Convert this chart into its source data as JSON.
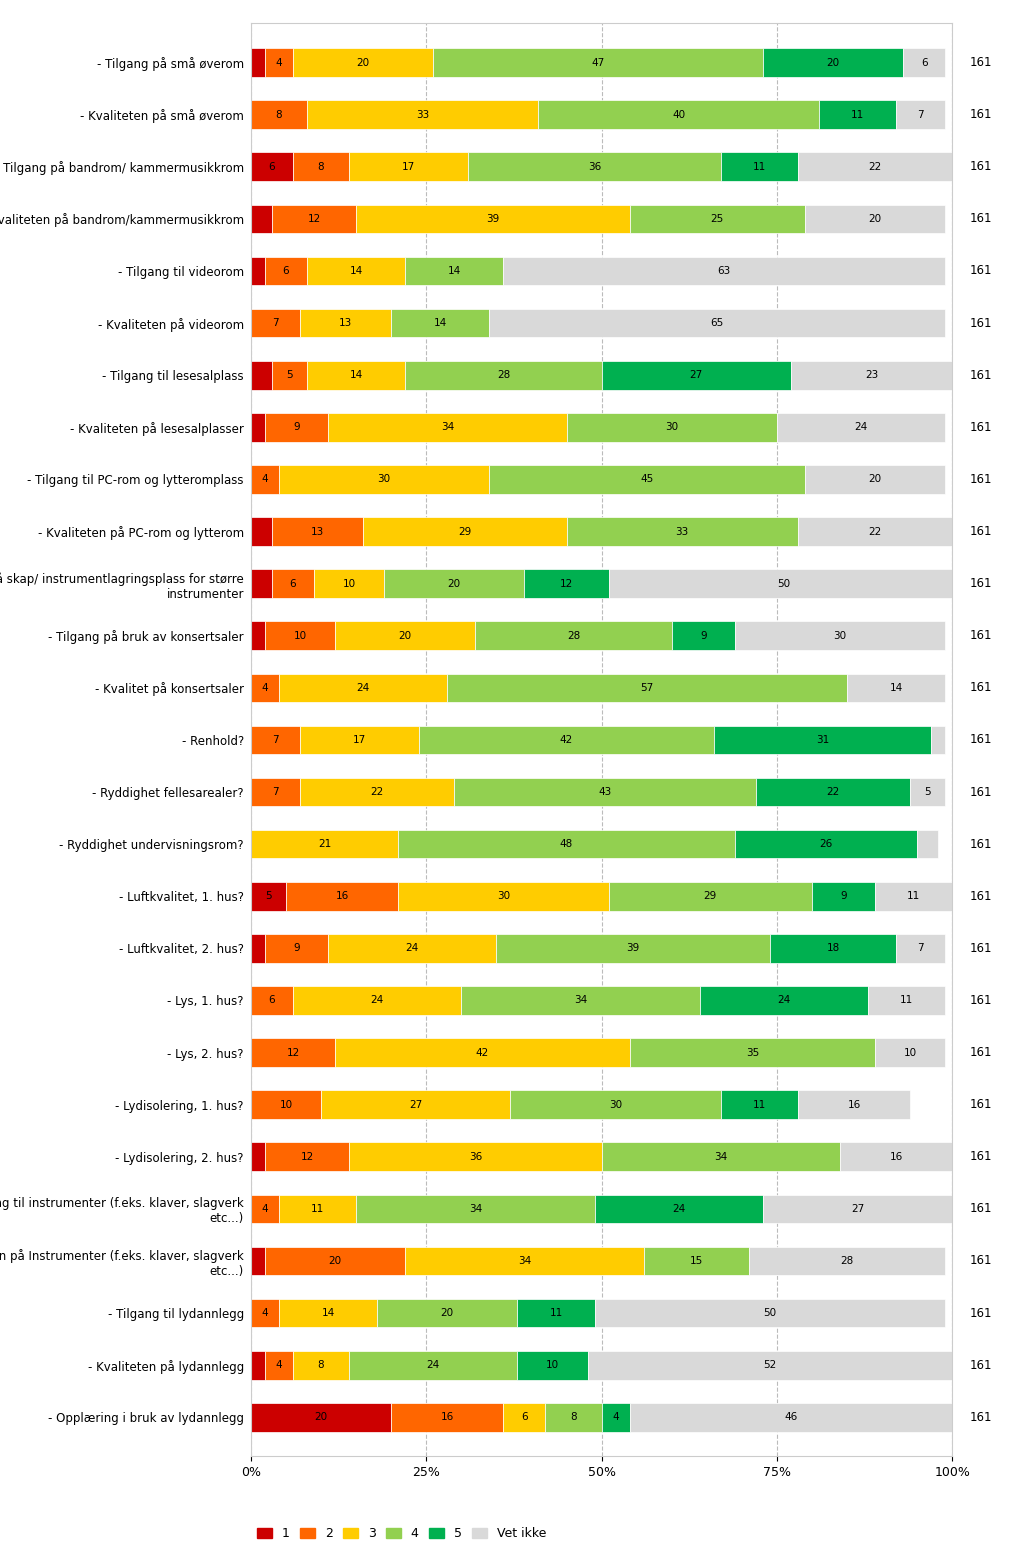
{
  "categories": [
    "- Tilgang på små øverom",
    "- Kvaliteten på små øverom",
    "- Tilgang på bandrom/ kammermusikkrom",
    "- Kvaliteten på bandrom/kammermusikkrom",
    "- Tilgang til videorom",
    "- Kvaliteten på videorom",
    "- Tilgang til lesesalplass",
    "- Kvaliteten på lesesalplasser",
    "- Tilgang til PC-rom og lytteromplass",
    "- Kvaliteten på PC-rom og lytterom",
    "- Tilgang på skap/ instrumentlagringsplass for større\ninstrumenter",
    "- Tilgang på bruk av konsertsaler",
    "- Kvalitet på konsertsaler",
    "- Renhold?",
    "- Ryddighet fellesarealer?",
    "- Ryddighet undervisningsrom?",
    "- Luftkvalitet, 1. hus?",
    "- Luftkvalitet, 2. hus?",
    "- Lys, 1. hus?",
    "- Lys, 2. hus?",
    "- Lydisolering, 1. hus?",
    "- Lydisolering, 2. hus?",
    "- Tilgang til instrumenter (f.eks. klaver, slagverk\netc...)",
    "- Kvaliteten på Instrumenter (f.eks. klaver, slagverk\netc...)",
    "- Tilgang til lydannlegg",
    "- Kvaliteten på lydannlegg",
    "- Opplæring i bruk av lydannlegg"
  ],
  "data": [
    [
      2,
      4,
      20,
      47,
      20,
      6
    ],
    [
      0,
      8,
      33,
      40,
      11,
      7
    ],
    [
      6,
      8,
      17,
      36,
      11,
      22
    ],
    [
      3,
      12,
      39,
      25,
      0,
      20
    ],
    [
      2,
      6,
      14,
      14,
      0,
      63
    ],
    [
      0,
      7,
      13,
      14,
      0,
      65
    ],
    [
      3,
      5,
      14,
      28,
      27,
      23
    ],
    [
      2,
      9,
      34,
      30,
      0,
      24
    ],
    [
      0,
      4,
      30,
      45,
      0,
      20
    ],
    [
      3,
      13,
      29,
      33,
      0,
      22
    ],
    [
      3,
      6,
      10,
      20,
      12,
      50
    ],
    [
      2,
      10,
      20,
      28,
      9,
      30
    ],
    [
      0,
      4,
      24,
      57,
      0,
      14
    ],
    [
      0,
      7,
      17,
      42,
      31,
      2
    ],
    [
      0,
      7,
      22,
      43,
      22,
      5
    ],
    [
      0,
      0,
      21,
      48,
      26,
      3
    ],
    [
      5,
      16,
      30,
      29,
      9,
      11
    ],
    [
      2,
      9,
      24,
      39,
      18,
      7
    ],
    [
      0,
      6,
      24,
      34,
      24,
      11
    ],
    [
      0,
      12,
      42,
      35,
      0,
      10
    ],
    [
      0,
      10,
      27,
      30,
      11,
      16
    ],
    [
      2,
      12,
      36,
      34,
      0,
      16
    ],
    [
      0,
      4,
      11,
      34,
      24,
      27
    ],
    [
      2,
      20,
      34,
      15,
      0,
      28
    ],
    [
      0,
      4,
      14,
      20,
      11,
      50
    ],
    [
      2,
      4,
      8,
      24,
      10,
      52
    ],
    [
      20,
      16,
      6,
      8,
      4,
      46
    ]
  ],
  "colors": [
    "#cc0000",
    "#ff6600",
    "#ffcc00",
    "#92d050",
    "#00b050",
    "#d9d9d9"
  ],
  "legend_labels": [
    "1",
    "2",
    "3",
    "4",
    "5",
    "Vet ikke"
  ],
  "total": "161",
  "x_ticks": [
    0,
    25,
    50,
    75,
    100
  ],
  "x_tick_labels": [
    "0%",
    "25%",
    "50%",
    "75%",
    "100%"
  ]
}
